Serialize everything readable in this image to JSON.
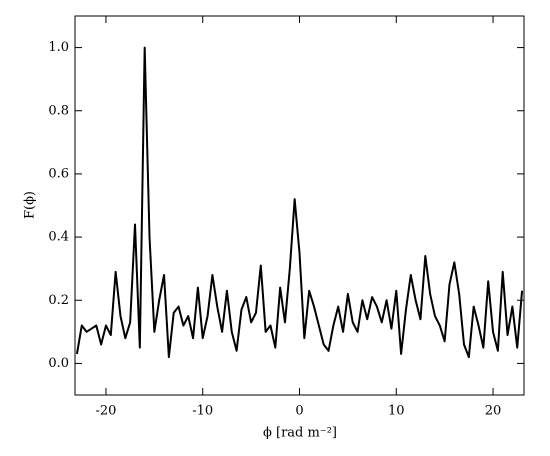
{
  "chart_data": {
    "type": "line",
    "xlabel": "ϕ [rad m⁻²]",
    "ylabel": "F(ϕ)",
    "x": [
      -23,
      -22.5,
      -22,
      -21.5,
      -21,
      -20.5,
      -20,
      -19.5,
      -19,
      -18.5,
      -18,
      -17.5,
      -17,
      -16.5,
      -16,
      -15.5,
      -15,
      -14.5,
      -14,
      -13.5,
      -13,
      -12.5,
      -12,
      -11.5,
      -11,
      -10.5,
      -10,
      -9.5,
      -9,
      -8.5,
      -8,
      -7.5,
      -7,
      -6.5,
      -6,
      -5.5,
      -5,
      -4.5,
      -4,
      -3.5,
      -3,
      -2.5,
      -2,
      -1.5,
      -1,
      -0.5,
      0,
      0.5,
      1,
      1.5,
      2,
      2.5,
      3,
      3.5,
      4,
      4.5,
      5,
      5.5,
      6,
      6.5,
      7,
      7.5,
      8,
      8.5,
      9,
      9.5,
      10,
      10.5,
      11,
      11.5,
      12,
      12.5,
      13,
      13.5,
      14,
      14.5,
      15,
      15.5,
      16,
      16.5,
      17,
      17.5,
      18,
      18.5,
      19,
      19.5,
      20,
      20.5,
      21,
      21.5,
      22,
      22.5,
      23
    ],
    "series": [
      {
        "color": "#000000",
        "values": [
          0.03,
          0.12,
          0.1,
          0.11,
          0.12,
          0.06,
          0.12,
          0.09,
          0.29,
          0.15,
          0.08,
          0.13,
          0.44,
          0.05,
          1.0,
          0.4,
          0.1,
          0.2,
          0.28,
          0.02,
          0.16,
          0.18,
          0.12,
          0.15,
          0.08,
          0.24,
          0.08,
          0.15,
          0.28,
          0.18,
          0.1,
          0.23,
          0.1,
          0.04,
          0.17,
          0.21,
          0.13,
          0.16,
          0.31,
          0.1,
          0.12,
          0.05,
          0.24,
          0.13,
          0.3,
          0.52,
          0.35,
          0.08,
          0.23,
          0.18,
          0.12,
          0.06,
          0.04,
          0.12,
          0.18,
          0.1,
          0.22,
          0.13,
          0.1,
          0.2,
          0.14,
          0.21,
          0.18,
          0.13,
          0.2,
          0.11,
          0.23,
          0.03,
          0.17,
          0.28,
          0.2,
          0.14,
          0.34,
          0.22,
          0.15,
          0.12,
          0.07,
          0.25,
          0.32,
          0.22,
          0.06,
          0.02,
          0.18,
          0.12,
          0.05,
          0.26,
          0.1,
          0.04,
          0.29,
          0.09,
          0.18,
          0.05,
          0.23
        ]
      }
    ],
    "xlim": [
      -23.2,
      23.2
    ],
    "ylim": [
      -0.1,
      1.1
    ],
    "xticks": [
      -20,
      -10,
      0,
      10,
      20
    ],
    "yticks": [
      {
        "value": 0,
        "label": "0.0"
      },
      {
        "value": 0.2,
        "label": "0.2"
      },
      {
        "value": 0.4,
        "label": "0.4"
      },
      {
        "value": 0.6,
        "label": "0.6"
      },
      {
        "value": 0.8,
        "label": "0.8"
      },
      {
        "value": 1,
        "label": "1.0"
      }
    ]
  }
}
